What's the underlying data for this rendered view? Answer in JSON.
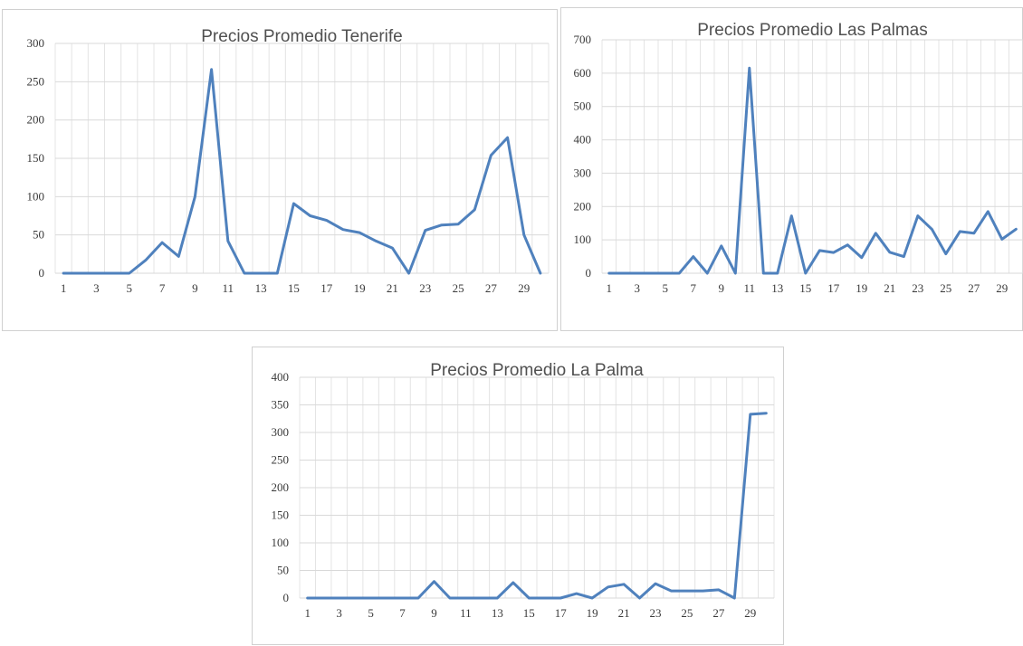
{
  "colors": {
    "series": "#4f81bd"
  },
  "chart_data": [
    {
      "type": "line",
      "title": "Precios Promedio Tenerife",
      "xlabel": "",
      "ylabel": "",
      "x": [
        1,
        2,
        3,
        4,
        5,
        6,
        7,
        8,
        9,
        10,
        11,
        12,
        13,
        14,
        15,
        16,
        17,
        18,
        19,
        20,
        21,
        22,
        23,
        24,
        25,
        26,
        27,
        28,
        29,
        30
      ],
      "x_tick_labels": [
        "1",
        "3",
        "5",
        "7",
        "9",
        "11",
        "13",
        "15",
        "17",
        "19",
        "21",
        "23",
        "25",
        "27",
        "29"
      ],
      "ylim": [
        0,
        300
      ],
      "y_ticks": [
        0,
        50,
        100,
        150,
        200,
        250,
        300
      ],
      "grid": true,
      "legend": "none",
      "series": [
        {
          "values": [
            0,
            0,
            0,
            0,
            0,
            17,
            40,
            22,
            100,
            266,
            42,
            0,
            0,
            0,
            91,
            75,
            69,
            57,
            53,
            42,
            33,
            0,
            56,
            63,
            64,
            83,
            154,
            177,
            50,
            0
          ]
        }
      ]
    },
    {
      "type": "line",
      "title": "Precios Promedio Las Palmas",
      "xlabel": "",
      "ylabel": "",
      "x": [
        1,
        2,
        3,
        4,
        5,
        6,
        7,
        8,
        9,
        10,
        11,
        12,
        13,
        14,
        15,
        16,
        17,
        18,
        19,
        20,
        21,
        22,
        23,
        24,
        25,
        26,
        27,
        28,
        29,
        30
      ],
      "x_tick_labels": [
        "1",
        "3",
        "5",
        "7",
        "9",
        "11",
        "13",
        "15",
        "17",
        "19",
        "21",
        "23",
        "25",
        "27",
        "29"
      ],
      "ylim": [
        0,
        700
      ],
      "y_ticks": [
        0,
        100,
        200,
        300,
        400,
        500,
        600,
        700
      ],
      "grid": true,
      "legend": "none",
      "series": [
        {
          "values": [
            0,
            0,
            0,
            0,
            0,
            0,
            50,
            0,
            82,
            0,
            615,
            0,
            0,
            172,
            0,
            68,
            62,
            85,
            47,
            120,
            63,
            50,
            172,
            132,
            58,
            125,
            120,
            185,
            102,
            132
          ]
        }
      ]
    },
    {
      "type": "line",
      "title": "Precios Promedio La Palma",
      "xlabel": "",
      "ylabel": "",
      "x": [
        1,
        2,
        3,
        4,
        5,
        6,
        7,
        8,
        9,
        10,
        11,
        12,
        13,
        14,
        15,
        16,
        17,
        18,
        19,
        20,
        21,
        22,
        23,
        24,
        25,
        26,
        27,
        28,
        29,
        30
      ],
      "x_tick_labels": [
        "1",
        "3",
        "5",
        "7",
        "9",
        "11",
        "13",
        "15",
        "17",
        "19",
        "21",
        "23",
        "25",
        "27",
        "29"
      ],
      "ylim": [
        0,
        400
      ],
      "y_ticks": [
        0,
        50,
        100,
        150,
        200,
        250,
        300,
        350,
        400
      ],
      "grid": true,
      "legend": "none",
      "series": [
        {
          "values": [
            0,
            0,
            0,
            0,
            0,
            0,
            0,
            0,
            30,
            0,
            0,
            0,
            0,
            28,
            0,
            0,
            0,
            8,
            0,
            20,
            25,
            0,
            26,
            13,
            13,
            13,
            15,
            0,
            333,
            335
          ]
        }
      ]
    }
  ]
}
